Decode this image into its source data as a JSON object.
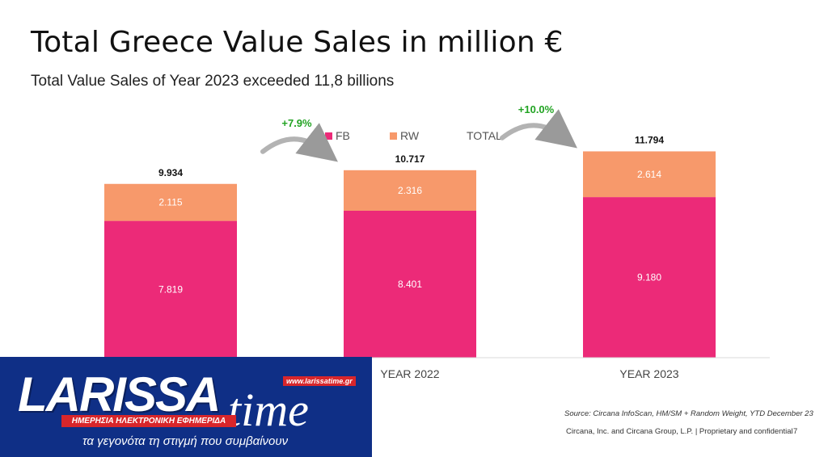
{
  "header": {
    "title": "Total Greece Value Sales in million €",
    "subtitle": "Total Value Sales of Year 2023 exceeded 11,8 billions"
  },
  "chart_data": {
    "type": "bar",
    "stacked": true,
    "categories": [
      "",
      "YEAR 2022",
      "YEAR 2023"
    ],
    "series": [
      {
        "name": "FB",
        "values": [
          7819,
          8401,
          9180
        ],
        "labels": [
          "7.819",
          "8.401",
          "9.180"
        ],
        "color": "#ec2a78"
      },
      {
        "name": "RW",
        "values": [
          2115,
          2316,
          2614
        ],
        "labels": [
          "2.115",
          "2.316",
          "2.614"
        ],
        "color": "#f7996b"
      }
    ],
    "totals": {
      "name": "TOTAL",
      "values": [
        9934,
        10717,
        11794
      ],
      "labels": [
        "9.934",
        "10.717",
        "11.794"
      ]
    },
    "growth": [
      {
        "label": "+7.9%",
        "from": 0,
        "to": 1
      },
      {
        "label": "+10.0%",
        "from": 1,
        "to": 2
      }
    ],
    "ylim": [
      0,
      12600
    ],
    "legend_position": "top-center",
    "grid": false
  },
  "footer": {
    "source": "Source: Circana InfoScan, HM/SM + Random Weight, YTD December 23",
    "company": "Circana, Inc. and Circana Group, L.P. |  Proprietary and confidential",
    "page": "7"
  },
  "logo": {
    "name": "LARISSA",
    "time": "time",
    "url": "www.larissatime.gr",
    "strip": "ΗΜΕΡΗΣΙΑ ΗΛΕΚΤΡΟΝΙΚΗ ΕΦΗΜΕΡΙΔΑ",
    "tagline": "τα γεγονότα τη στιγμή που συμβαίνουν"
  }
}
